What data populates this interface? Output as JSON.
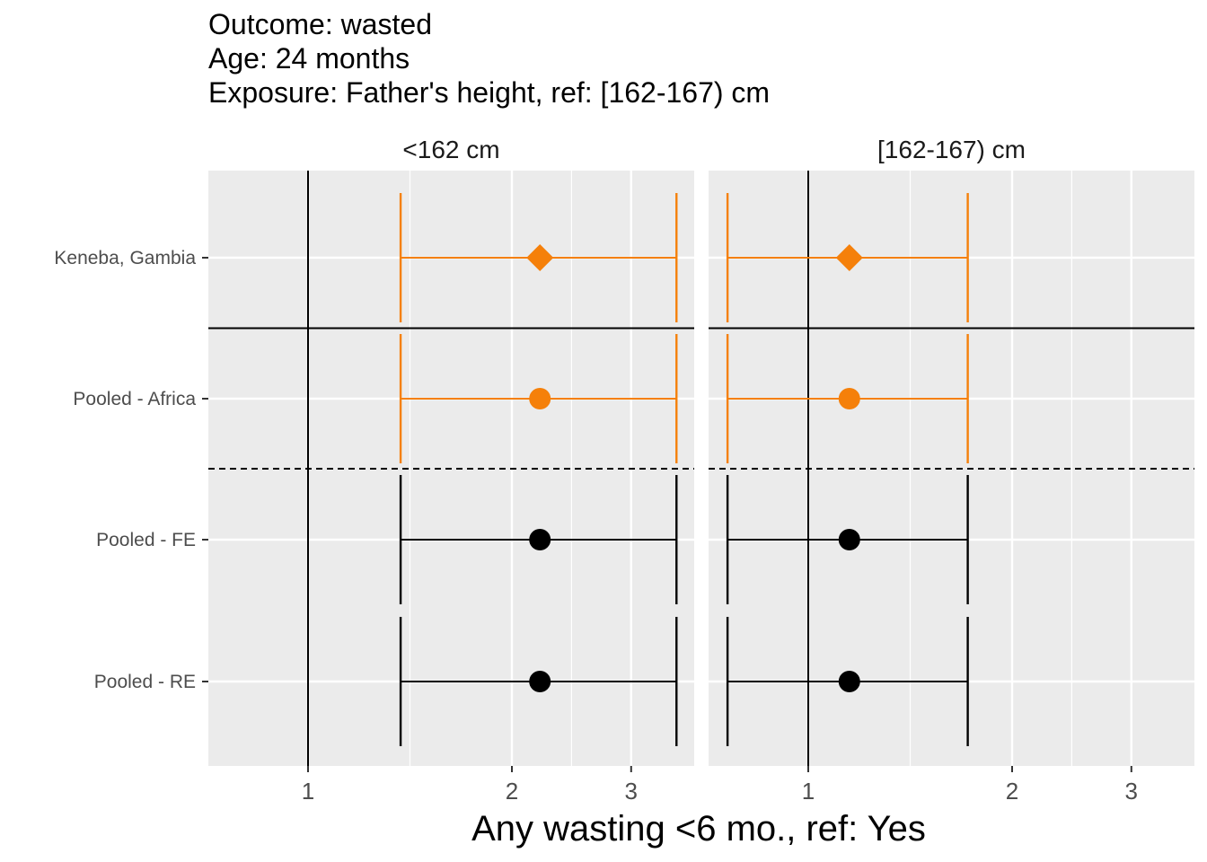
{
  "title_lines": [
    "Outcome: wasted",
    "Age: 24 months",
    "Exposure: Father's height, ref: [162-167) cm"
  ],
  "chart_data": {
    "type": "forest",
    "x_scale": "log",
    "xlabel": "Any wasting  <6 mo., ref: Yes",
    "xlim": [
      0.7,
      3.5
    ],
    "x_ticks": [
      1,
      2,
      3
    ],
    "x_tick_labels": [
      "1",
      "2",
      "3"
    ],
    "reference_line": 1,
    "categories": [
      "Keneba, Gambia",
      "Pooled - Africa",
      "Pooled - FE",
      "Pooled - RE"
    ],
    "panels": [
      {
        "label": "<162 cm",
        "estimates": [
          {
            "row": "Keneba, Gambia",
            "est": 2.2,
            "lower": 1.37,
            "upper": 3.5,
            "shape": "diamond",
            "color": "#F5800A"
          },
          {
            "row": "Pooled - Africa",
            "est": 2.2,
            "lower": 1.37,
            "upper": 3.5,
            "shape": "circle",
            "color": "#F5800A"
          },
          {
            "row": "Pooled - FE",
            "est": 2.2,
            "lower": 1.37,
            "upper": 3.5,
            "shape": "circle",
            "color": "#000000"
          },
          {
            "row": "Pooled - RE",
            "est": 2.2,
            "lower": 1.37,
            "upper": 3.5,
            "shape": "circle",
            "color": "#000000"
          }
        ]
      },
      {
        "label": "[162-167) cm",
        "estimates": [
          {
            "row": "Keneba, Gambia",
            "est": 1.15,
            "lower": 0.76,
            "upper": 1.72,
            "shape": "diamond",
            "color": "#F5800A"
          },
          {
            "row": "Pooled - Africa",
            "est": 1.15,
            "lower": 0.76,
            "upper": 1.72,
            "shape": "circle",
            "color": "#F5800A"
          },
          {
            "row": "Pooled - FE",
            "est": 1.15,
            "lower": 0.76,
            "upper": 1.72,
            "shape": "circle",
            "color": "#000000"
          },
          {
            "row": "Pooled - RE",
            "est": 1.15,
            "lower": 0.76,
            "upper": 1.72,
            "shape": "circle",
            "color": "#000000"
          }
        ]
      }
    ],
    "separators": [
      {
        "after_row": "Keneba, Gambia",
        "style": "solid"
      },
      {
        "after_row": "Pooled - Africa",
        "style": "dashed"
      }
    ],
    "colors": {
      "panel_bg": "#EBEBEB",
      "grid": "#FFFFFF",
      "cohort": "#F5800A",
      "pooled": "#000000"
    }
  }
}
